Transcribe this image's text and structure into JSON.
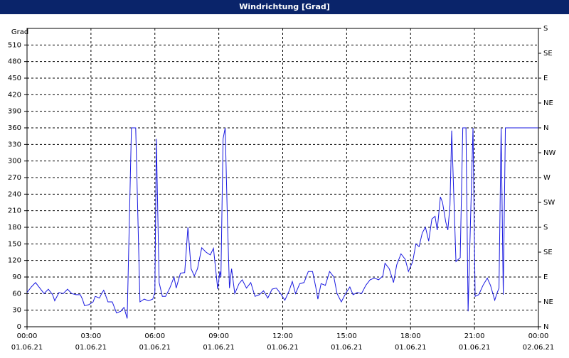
{
  "chart_data": {
    "type": "line",
    "title": "Windrichtung [Grad]",
    "y_label": "Grad",
    "color": "#1a1ae0",
    "grid": true,
    "xlim": [
      0,
      24
    ],
    "xticks": [
      {
        "value": 0,
        "label": "00:00"
      },
      {
        "value": 3,
        "label": "03:00"
      },
      {
        "value": 6,
        "label": "06:00"
      },
      {
        "value": 9,
        "label": "09:00"
      },
      {
        "value": 12,
        "label": "12:00"
      },
      {
        "value": 15,
        "label": "15:00"
      },
      {
        "value": 18,
        "label": "18:00"
      },
      {
        "value": 21,
        "label": "21:00"
      },
      {
        "value": 24,
        "label": "00:00"
      }
    ],
    "xtick_dates": [
      "01.06.21",
      "01.06.21",
      "01.06.21",
      "01.06.21",
      "01.06.21",
      "01.06.21",
      "01.06.21",
      "01.06.21",
      "02.06.21"
    ],
    "ylim": [
      0,
      540
    ],
    "yticks": [
      0,
      30,
      60,
      90,
      120,
      150,
      180,
      210,
      240,
      270,
      300,
      330,
      360,
      390,
      420,
      450,
      480,
      510
    ],
    "y2lim": [
      0,
      540
    ],
    "y2ticks": [
      {
        "value": 0,
        "label": "N"
      },
      {
        "value": 45,
        "label": "NE"
      },
      {
        "value": 90,
        "label": "E"
      },
      {
        "value": 135,
        "label": "SE"
      },
      {
        "value": 180,
        "label": "S"
      },
      {
        "value": 225,
        "label": "SW"
      },
      {
        "value": 270,
        "label": "W"
      },
      {
        "value": 315,
        "label": "NW"
      },
      {
        "value": 360,
        "label": "N"
      },
      {
        "value": 405,
        "label": "NE"
      },
      {
        "value": 450,
        "label": "E"
      },
      {
        "value": 495,
        "label": "SE"
      },
      {
        "value": 540,
        "label": "S"
      }
    ],
    "x": [
      0.0,
      0.2,
      0.4,
      0.6,
      0.8,
      1.0,
      1.2,
      1.3,
      1.5,
      1.7,
      1.9,
      2.1,
      2.3,
      2.5,
      2.6,
      2.7,
      2.9,
      3.1,
      3.2,
      3.4,
      3.5,
      3.6,
      3.8,
      4.0,
      4.2,
      4.4,
      4.55,
      4.7,
      4.9,
      5.1,
      5.3,
      5.5,
      5.7,
      5.9,
      6.0,
      6.07,
      6.2,
      6.35,
      6.5,
      6.7,
      6.9,
      7.0,
      7.2,
      7.4,
      7.55,
      7.7,
      7.85,
      8.0,
      8.2,
      8.4,
      8.6,
      8.75,
      8.95,
      9.05,
      9.1,
      9.2,
      9.3,
      9.4,
      9.5,
      9.6,
      9.75,
      9.95,
      10.1,
      10.3,
      10.5,
      10.7,
      10.9,
      11.1,
      11.3,
      11.5,
      11.7,
      11.9,
      12.1,
      12.3,
      12.45,
      12.6,
      12.8,
      13.0,
      13.2,
      13.4,
      13.55,
      13.65,
      13.8,
      14.0,
      14.2,
      14.4,
      14.55,
      14.75,
      14.95,
      15.15,
      15.3,
      15.5,
      15.7,
      15.9,
      16.1,
      16.3,
      16.5,
      16.7,
      16.8,
      17.0,
      17.2,
      17.35,
      17.55,
      17.75,
      17.9,
      18.1,
      18.25,
      18.4,
      18.55,
      18.7,
      18.85,
      19.0,
      19.15,
      19.25,
      19.4,
      19.5,
      19.65,
      19.75,
      19.85,
      19.93,
      20.13,
      20.33,
      20.45,
      20.6,
      20.7,
      20.93,
      21.03,
      21.2,
      21.4,
      21.6,
      21.75,
      21.95,
      22.05,
      22.15,
      22.25,
      22.35,
      22.45,
      22.55,
      23.0,
      24.0
    ],
    "values": [
      62,
      72,
      80,
      70,
      60,
      68,
      58,
      47,
      62,
      60,
      68,
      60,
      58,
      58,
      50,
      38,
      40,
      45,
      55,
      52,
      60,
      66,
      45,
      45,
      25,
      28,
      35,
      15,
      360,
      360,
      45,
      50,
      47,
      50,
      62,
      340,
      80,
      55,
      55,
      70,
      90,
      70,
      97,
      98,
      180,
      105,
      92,
      105,
      143,
      135,
      130,
      142,
      68,
      100,
      90,
      340,
      360,
      200,
      70,
      105,
      60,
      78,
      85,
      70,
      80,
      55,
      58,
      65,
      52,
      68,
      70,
      60,
      48,
      65,
      82,
      60,
      78,
      80,
      100,
      100,
      72,
      50,
      78,
      75,
      100,
      90,
      60,
      45,
      60,
      72,
      58,
      62,
      60,
      75,
      85,
      88,
      85,
      92,
      115,
      105,
      80,
      112,
      132,
      122,
      100,
      118,
      150,
      145,
      170,
      180,
      155,
      195,
      200,
      175,
      235,
      225,
      190,
      175,
      220,
      355,
      118,
      125,
      360,
      360,
      28,
      360,
      55,
      58,
      75,
      88,
      75,
      48,
      60,
      70,
      360,
      58,
      360,
      360,
      360,
      360
    ]
  }
}
